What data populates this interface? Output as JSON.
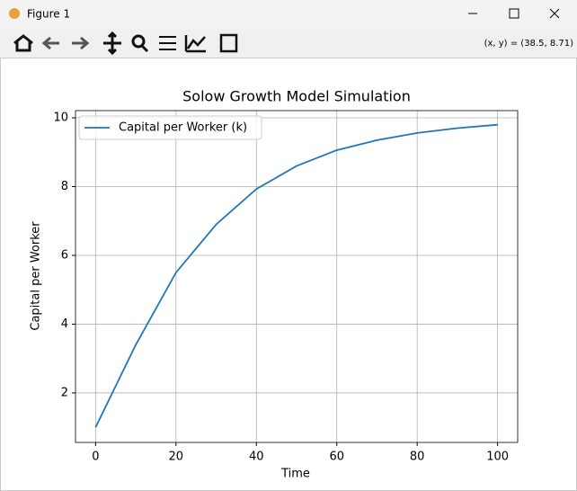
{
  "window": {
    "title": "Figure 1",
    "coords": "(x, y) = (38.5, 8.71)"
  },
  "chart_data": {
    "type": "line",
    "title": "Solow Growth Model Simulation",
    "x_label": "Time",
    "y_label": "Capital per Worker",
    "x": [
      0,
      5,
      10,
      20,
      30,
      40,
      50,
      60,
      70,
      80,
      90,
      100
    ],
    "series": [
      {
        "name": "Capital per Worker (k)",
        "color": "#1f77b4",
        "values": [
          1.0,
          2.2,
          3.4,
          5.5,
          6.9,
          7.93,
          8.6,
          9.06,
          9.35,
          9.56,
          9.7,
          9.8
        ]
      }
    ],
    "xlim": [
      -5,
      105
    ],
    "ylim": [
      0.56,
      10.21
    ],
    "xticks": [
      0,
      20,
      40,
      60,
      80,
      100
    ],
    "yticks": [
      2,
      4,
      6,
      8,
      10
    ],
    "grid": true,
    "legend": "upper left"
  }
}
